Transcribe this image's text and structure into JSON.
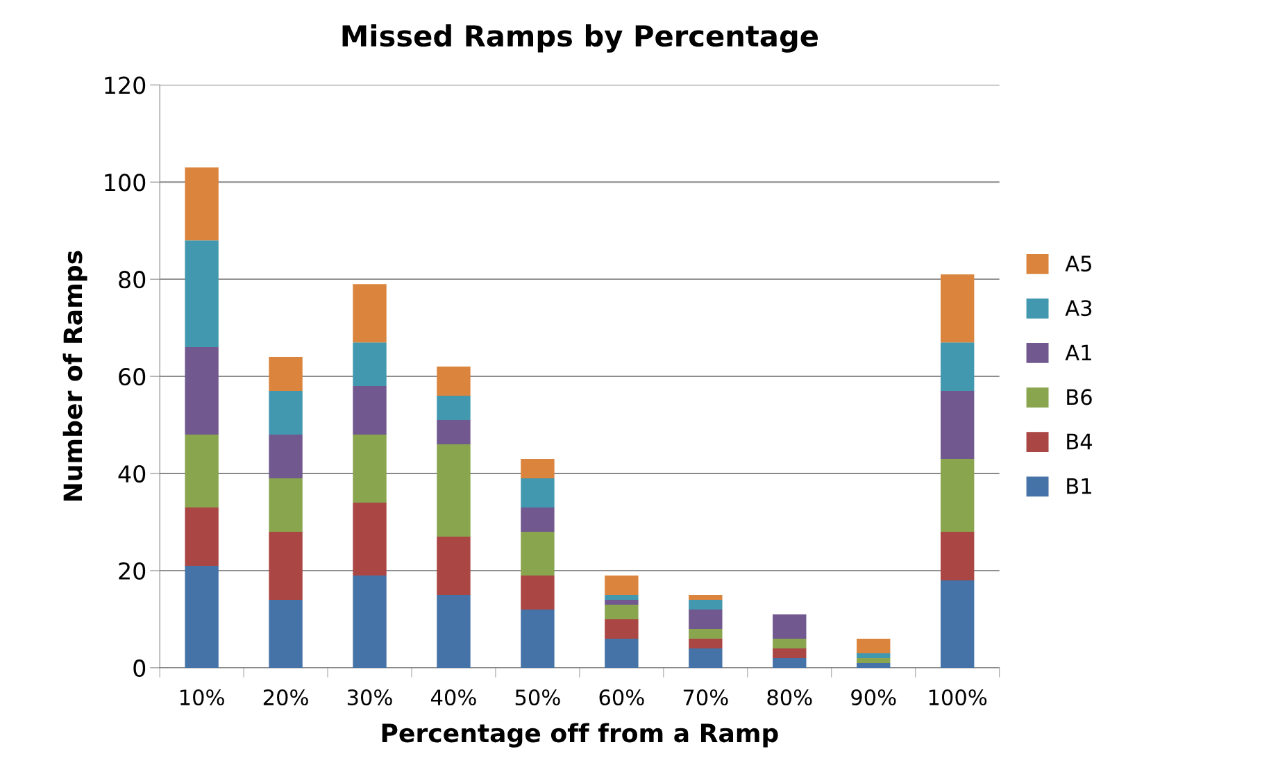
{
  "chart_data": {
    "type": "bar",
    "stacked": true,
    "title": "Missed Ramps by Percentage",
    "xlabel": "Percentage off from a Ramp",
    "ylabel": "Number of Ramps",
    "categories": [
      "10%",
      "20%",
      "30%",
      "40%",
      "50%",
      "60%",
      "70%",
      "80%",
      "90%",
      "100%"
    ],
    "series": [
      {
        "name": "B1",
        "color": "#4572a7",
        "values": [
          21,
          14,
          19,
          15,
          12,
          6,
          4,
          2,
          1,
          18
        ]
      },
      {
        "name": "B4",
        "color": "#aa4643",
        "values": [
          12,
          14,
          15,
          12,
          7,
          4,
          2,
          2,
          0,
          10
        ]
      },
      {
        "name": "B6",
        "color": "#89a54e",
        "values": [
          15,
          11,
          14,
          19,
          9,
          3,
          2,
          2,
          1,
          15
        ]
      },
      {
        "name": "A1",
        "color": "#71588f",
        "values": [
          18,
          9,
          10,
          5,
          5,
          1,
          4,
          5,
          0,
          14
        ]
      },
      {
        "name": "A3",
        "color": "#4198af",
        "values": [
          22,
          9,
          9,
          5,
          6,
          1,
          2,
          0,
          1,
          10
        ]
      },
      {
        "name": "A5",
        "color": "#db843d",
        "values": [
          15,
          7,
          12,
          6,
          4,
          4,
          1,
          0,
          3,
          14
        ]
      }
    ],
    "ylim": [
      0,
      120
    ],
    "yticks": [
      0,
      20,
      40,
      60,
      80,
      100,
      120
    ],
    "grid": "y",
    "legend": "right"
  }
}
